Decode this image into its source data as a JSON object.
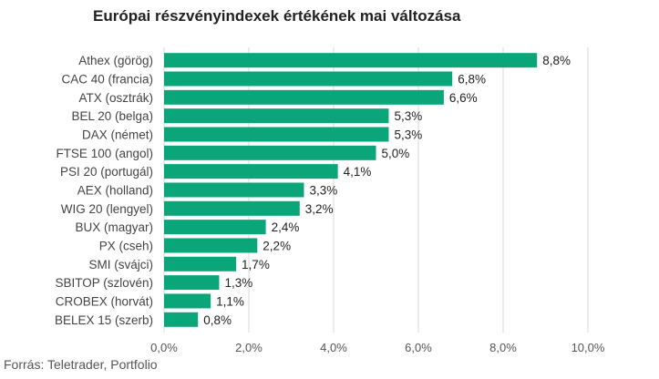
{
  "chart_data": {
    "type": "bar",
    "orientation": "horizontal",
    "title": "Európai részvényindexek értékének mai változása",
    "source": "Forrás: Teletrader, Portfolio",
    "categories": [
      "Athex (görög)",
      "CAC 40 (francia)",
      "ATX (osztrák)",
      "BEL 20 (belga)",
      "DAX (német)",
      "FTSE 100 (angol)",
      "PSI 20 (portugál)",
      "AEX (holland)",
      "WIG 20 (lengyel)",
      "BUX (magyar)",
      "PX (cseh)",
      "SMI (svájci)",
      "SBITOP (szlovén)",
      "CROBEX (horvát)",
      "BELEX 15 (szerb)"
    ],
    "values": [
      8.8,
      6.8,
      6.6,
      5.3,
      5.3,
      5.0,
      4.1,
      3.3,
      3.2,
      2.4,
      2.2,
      1.7,
      1.3,
      1.1,
      0.8
    ],
    "value_labels": [
      "8,8%",
      "6,8%",
      "6,6%",
      "5,3%",
      "5,3%",
      "5,0%",
      "4,1%",
      "3,3%",
      "3,2%",
      "2,4%",
      "2,2%",
      "1,7%",
      "1,3%",
      "1,1%",
      "0,8%"
    ],
    "xlim": [
      0,
      10
    ],
    "x_ticks": [
      0,
      2,
      4,
      6,
      8,
      10
    ],
    "x_tick_labels": [
      "0,0%",
      "2,0%",
      "4,0%",
      "6,0%",
      "8,0%",
      "10,0%"
    ],
    "grid": true,
    "bar_color": "#0aa67a",
    "grid_color": "#d9d9d9"
  }
}
